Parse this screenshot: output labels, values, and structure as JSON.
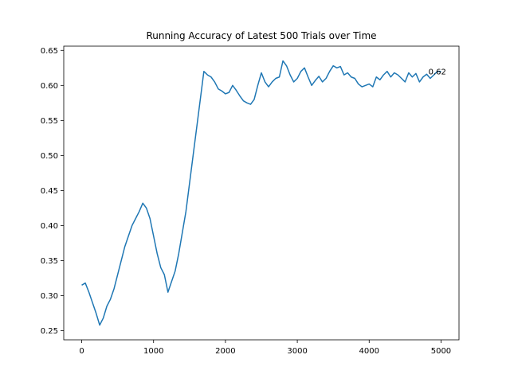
{
  "chart_data": {
    "type": "line",
    "title": "Running Accuracy of Latest 500 Trials over Time",
    "xlabel": "",
    "ylabel": "",
    "xlim": [
      -250,
      5250
    ],
    "ylim": [
      0.237,
      0.656
    ],
    "xticks": [
      0,
      1000,
      2000,
      3000,
      4000,
      5000
    ],
    "xtick_labels": [
      "0",
      "1000",
      "2000",
      "3000",
      "4000",
      "5000"
    ],
    "yticks": [
      0.25,
      0.3,
      0.35,
      0.4,
      0.45,
      0.5,
      0.55,
      0.6,
      0.65
    ],
    "ytick_labels": [
      "0.25",
      "0.30",
      "0.35",
      "0.40",
      "0.45",
      "0.50",
      "0.55",
      "0.60",
      "0.65"
    ],
    "grid": false,
    "series": [
      {
        "color": "#1f77b4",
        "x": [
          0,
          50,
          100,
          150,
          200,
          250,
          300,
          350,
          400,
          450,
          500,
          550,
          600,
          650,
          700,
          750,
          800,
          850,
          900,
          950,
          1000,
          1050,
          1100,
          1150,
          1200,
          1250,
          1300,
          1350,
          1400,
          1450,
          1500,
          1550,
          1600,
          1650,
          1700,
          1750,
          1800,
          1850,
          1900,
          1950,
          2000,
          2050,
          2100,
          2150,
          2200,
          2250,
          2300,
          2350,
          2400,
          2450,
          2500,
          2550,
          2600,
          2650,
          2700,
          2750,
          2800,
          2850,
          2900,
          2950,
          3000,
          3050,
          3100,
          3150,
          3200,
          3250,
          3300,
          3350,
          3400,
          3450,
          3500,
          3550,
          3600,
          3650,
          3700,
          3750,
          3800,
          3850,
          3900,
          3950,
          4000,
          4050,
          4100,
          4150,
          4200,
          4250,
          4300,
          4350,
          4400,
          4450,
          4500,
          4550,
          4600,
          4650,
          4700,
          4750,
          4800,
          4850,
          4900,
          4950,
          5000
        ],
        "y": [
          0.315,
          0.318,
          0.305,
          0.29,
          0.275,
          0.258,
          0.268,
          0.285,
          0.295,
          0.31,
          0.33,
          0.35,
          0.37,
          0.385,
          0.4,
          0.41,
          0.42,
          0.432,
          0.425,
          0.41,
          0.385,
          0.36,
          0.34,
          0.33,
          0.305,
          0.32,
          0.335,
          0.36,
          0.39,
          0.42,
          0.46,
          0.5,
          0.54,
          0.58,
          0.62,
          0.615,
          0.612,
          0.605,
          0.595,
          0.592,
          0.588,
          0.59,
          0.6,
          0.593,
          0.585,
          0.578,
          0.575,
          0.573,
          0.58,
          0.6,
          0.618,
          0.605,
          0.598,
          0.605,
          0.61,
          0.612,
          0.635,
          0.628,
          0.615,
          0.605,
          0.61,
          0.62,
          0.625,
          0.612,
          0.6,
          0.607,
          0.613,
          0.605,
          0.61,
          0.62,
          0.628,
          0.625,
          0.627,
          0.615,
          0.618,
          0.612,
          0.61,
          0.602,
          0.598,
          0.6,
          0.602,
          0.598,
          0.612,
          0.608,
          0.615,
          0.62,
          0.612,
          0.618,
          0.615,
          0.61,
          0.605,
          0.618,
          0.612,
          0.617,
          0.605,
          0.612,
          0.616,
          0.61,
          0.615,
          0.62,
          0.62
        ]
      }
    ],
    "annotations": [
      {
        "text": "0.62",
        "x": 4980,
        "y": 0.62
      }
    ]
  }
}
